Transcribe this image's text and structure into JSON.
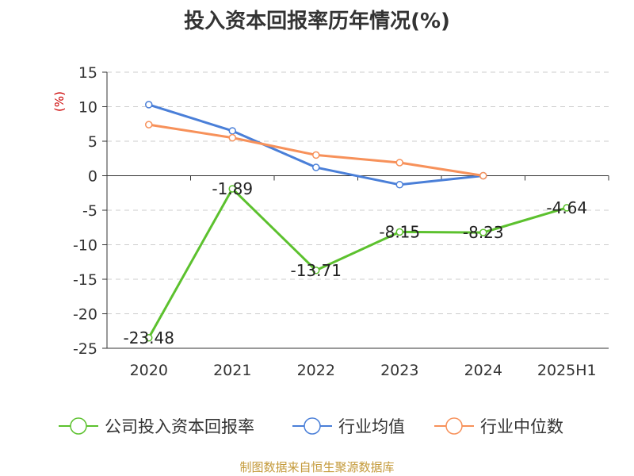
{
  "chart_data": {
    "type": "line",
    "title": "投入资本回报率历年情况(%)",
    "ylabel": "(%)",
    "categories": [
      "2020",
      "2021",
      "2022",
      "2023",
      "2024",
      "2025H1"
    ],
    "ylim": [
      -25,
      15
    ],
    "yticks": [
      15,
      10,
      5,
      0,
      -5,
      -10,
      -15,
      -20,
      -25
    ],
    "grid": true,
    "legend_position": "bottom",
    "series": [
      {
        "name": "公司投入资本回报率",
        "color": "#5cc12e",
        "values": [
          -23.48,
          -1.89,
          -13.71,
          -8.15,
          -8.23,
          -4.64
        ],
        "labels": [
          "-23.48",
          "-1.89",
          "-13.71",
          "-8.15",
          "-8.23",
          "-4.64"
        ]
      },
      {
        "name": "行业均值",
        "color": "#4a7fd8",
        "values": [
          10.3,
          6.5,
          1.2,
          -1.3,
          0.0,
          null
        ]
      },
      {
        "name": "行业中位数",
        "color": "#f7915a",
        "values": [
          7.4,
          5.5,
          3.0,
          1.9,
          0.0,
          null
        ]
      }
    ]
  },
  "source": "制图数据来自恒生聚源数据库"
}
